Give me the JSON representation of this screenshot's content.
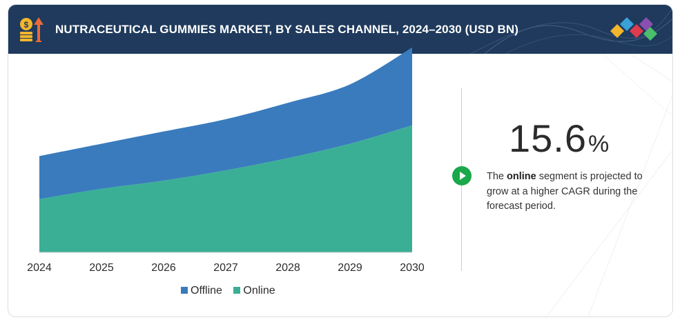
{
  "header": {
    "title": "NUTRACEUTICAL GUMMIES MARKET, BY SALES CHANNEL, 2024–2030 (USD BN)",
    "icon": "money-growth-icon",
    "logo": "diamond-logo-icon"
  },
  "colors": {
    "header_bg": "#1f3a5c",
    "offline": "#3a7bbd",
    "online": "#3baf96",
    "play": "#1aa84b"
  },
  "chart_data": {
    "type": "area",
    "stacked": true,
    "x": [
      "2024",
      "2025",
      "2026",
      "2027",
      "2028",
      "2029",
      "2030"
    ],
    "series": [
      {
        "name": "Online",
        "values": [
          2.6,
          3.1,
          3.5,
          4.0,
          4.6,
          5.3,
          6.2
        ]
      },
      {
        "name": "Offline",
        "values": [
          2.1,
          2.2,
          2.4,
          2.5,
          2.7,
          2.9,
          3.8
        ]
      }
    ],
    "ylim": [
      0,
      10.5
    ],
    "xlabel": "",
    "ylabel": "",
    "grid": false,
    "legend": "bottom"
  },
  "legend": {
    "offline": "Offline",
    "online": "Online"
  },
  "highlight": {
    "value": "15.6",
    "unit": "%",
    "text_before": "The ",
    "text_bold": "online",
    "text_after": " segment is projected to grow at a higher CAGR during the forecast period."
  }
}
